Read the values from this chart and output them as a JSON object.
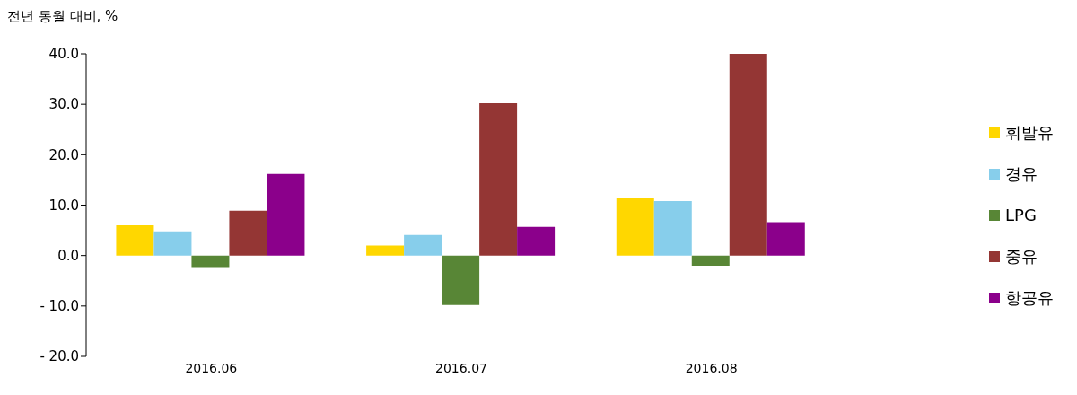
{
  "chart_data": {
    "type": "bar",
    "ylabel": "전년 동월 대비, %",
    "categories": [
      "2016.06",
      "2016.07",
      "2016.08"
    ],
    "series": [
      {
        "name": "휘발유",
        "color": "#ffd700",
        "values": [
          6.0,
          2.0,
          11.4
        ]
      },
      {
        "name": "경유",
        "color": "#87ceeb",
        "values": [
          4.8,
          4.1,
          10.8
        ]
      },
      {
        "name": "LPG",
        "color": "#588636",
        "values": [
          -2.3,
          -9.8,
          -2.0
        ]
      },
      {
        "name": "중유",
        "color": "#943634",
        "values": [
          8.9,
          30.2,
          40.0
        ]
      },
      {
        "name": "항공유",
        "color": "#8b008b",
        "values": [
          16.2,
          5.7,
          6.6
        ]
      }
    ],
    "ylim": [
      -20,
      40
    ],
    "yticks": [
      {
        "value": -20,
        "label": "- 20.0"
      },
      {
        "value": -10,
        "label": "- 10.0"
      },
      {
        "value": 0,
        "label": "0.0"
      },
      {
        "value": 10,
        "label": "10.0"
      },
      {
        "value": 20,
        "label": "20.0"
      },
      {
        "value": 30,
        "label": "30.0"
      },
      {
        "value": 40,
        "label": "40.0"
      }
    ],
    "legend": "right"
  }
}
